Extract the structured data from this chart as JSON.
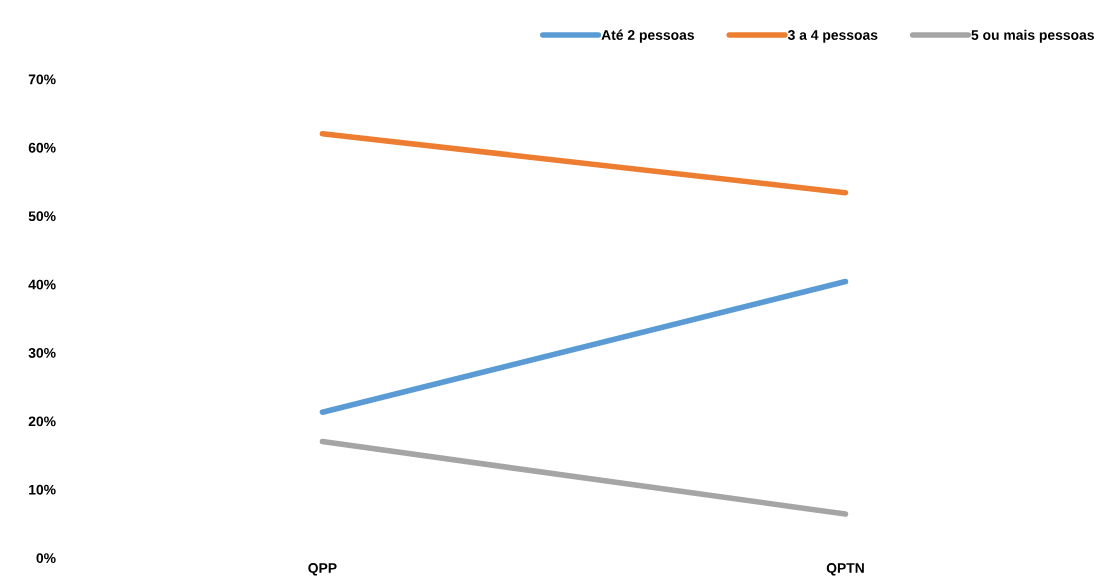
{
  "chart_data": {
    "type": "line",
    "categories": [
      "QPP",
      "QPTN"
    ],
    "series": [
      {
        "name": "Até 2 pessoas",
        "color": "#5b9bd5",
        "values": [
          21.3,
          40.4
        ]
      },
      {
        "name": "3 a 4 pessoas",
        "color": "#ed7d31",
        "values": [
          62.0,
          53.4
        ]
      },
      {
        "name": "5 ou mais pessoas",
        "color": "#a5a5a5",
        "values": [
          17.0,
          6.4
        ]
      }
    ],
    "ylim": [
      0,
      70
    ],
    "yticks": [
      {
        "value": 0,
        "label": "0%"
      },
      {
        "value": 10,
        "label": "10%"
      },
      {
        "value": 20,
        "label": "20%"
      },
      {
        "value": 30,
        "label": "30%"
      },
      {
        "value": 40,
        "label": "40%"
      },
      {
        "value": 50,
        "label": "50%"
      },
      {
        "value": 60,
        "label": "60%"
      },
      {
        "value": 70,
        "label": "70%"
      }
    ],
    "grid": false,
    "legend": "top right",
    "marker": "none",
    "line_style": "solid"
  }
}
